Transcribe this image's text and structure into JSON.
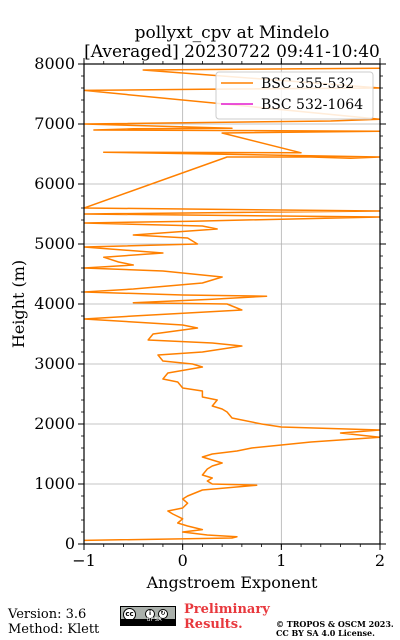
{
  "chart_data": {
    "type": "line",
    "title": [
      "pollyxt_cpv at Mindelo",
      "[Averaged] 20230722 09:41-10:40"
    ],
    "xlabel": "Angstroem Exponent",
    "ylabel": "Height (m)",
    "xlim": [
      -1,
      2
    ],
    "ylim": [
      0,
      8000
    ],
    "xticks": [
      -1,
      0,
      1,
      2
    ],
    "yticks": [
      0,
      1000,
      2000,
      3000,
      4000,
      5000,
      6000,
      7000,
      8000
    ],
    "grid": true,
    "legend_position": "top-right",
    "series": [
      {
        "name": "BSC 355-532",
        "color": "#ff8000",
        "points": [
          [
            -1.0,
            60
          ],
          [
            0.5,
            100
          ],
          [
            0.55,
            120
          ],
          [
            0.25,
            150
          ],
          [
            0.0,
            200
          ],
          [
            0.2,
            240
          ],
          [
            0.05,
            300
          ],
          [
            -0.05,
            350
          ],
          [
            0.0,
            420
          ],
          [
            -0.1,
            500
          ],
          [
            -0.15,
            550
          ],
          [
            0.0,
            600
          ],
          [
            0.05,
            680
          ],
          [
            0.0,
            750
          ],
          [
            0.05,
            800
          ],
          [
            0.2,
            900
          ],
          [
            0.75,
            980
          ],
          [
            0.3,
            1000
          ],
          [
            0.25,
            1050
          ],
          [
            0.3,
            1100
          ],
          [
            0.2,
            1150
          ],
          [
            0.25,
            1250
          ],
          [
            0.3,
            1300
          ],
          [
            0.4,
            1350
          ],
          [
            0.3,
            1400
          ],
          [
            0.2,
            1450
          ],
          [
            0.3,
            1500
          ],
          [
            0.55,
            1550
          ],
          [
            0.7,
            1600
          ],
          [
            1.0,
            1650
          ],
          [
            1.3,
            1700
          ],
          [
            2.0,
            1780
          ],
          [
            1.6,
            1850
          ],
          [
            2.0,
            1900
          ],
          [
            1.0,
            1950
          ],
          [
            0.8,
            2000
          ],
          [
            0.5,
            2100
          ],
          [
            0.45,
            2200
          ],
          [
            0.4,
            2250
          ],
          [
            0.3,
            2300
          ],
          [
            0.35,
            2400
          ],
          [
            0.2,
            2450
          ],
          [
            0.2,
            2550
          ],
          [
            0.0,
            2600
          ],
          [
            -0.05,
            2700
          ],
          [
            -0.2,
            2750
          ],
          [
            -0.15,
            2850
          ],
          [
            0.2,
            2950
          ],
          [
            0.1,
            3000
          ],
          [
            -0.2,
            3050
          ],
          [
            -0.25,
            3150
          ],
          [
            0.2,
            3200
          ],
          [
            0.6,
            3300
          ],
          [
            0.3,
            3350
          ],
          [
            -0.35,
            3400
          ],
          [
            -0.3,
            3500
          ],
          [
            0.15,
            3600
          ],
          [
            0.0,
            3650
          ],
          [
            -0.5,
            3700
          ],
          [
            -1.0,
            3750
          ],
          [
            -0.5,
            3800
          ],
          [
            0.6,
            3900
          ],
          [
            0.45,
            4000
          ],
          [
            -0.5,
            4020
          ],
          [
            0.3,
            4080
          ],
          [
            0.85,
            4130
          ],
          [
            0.0,
            4150
          ],
          [
            -1.0,
            4200
          ],
          [
            -0.5,
            4250
          ],
          [
            0.2,
            4350
          ],
          [
            0.4,
            4450
          ],
          [
            -0.2,
            4550
          ],
          [
            -1.0,
            4600
          ],
          [
            -0.5,
            4650
          ],
          [
            -0.65,
            4700
          ],
          [
            -0.8,
            4780
          ],
          [
            -0.2,
            4850
          ],
          [
            -1.0,
            4950
          ],
          [
            0.15,
            5000
          ],
          [
            0.05,
            5100
          ],
          [
            -0.5,
            5150
          ],
          [
            0.35,
            5250
          ],
          [
            0.2,
            5300
          ],
          [
            -1.0,
            5350
          ],
          [
            0.1,
            5380
          ],
          [
            2.0,
            5450
          ],
          [
            -1.0,
            5500
          ],
          [
            2.0,
            5550
          ],
          [
            -1.0,
            5600
          ],
          [
            0.45,
            6450
          ],
          [
            1.3,
            6450
          ],
          [
            1.7,
            6430
          ],
          [
            2.0,
            6450
          ],
          [
            1.0,
            6480
          ],
          [
            -0.8,
            6530
          ],
          [
            1.2,
            6520
          ],
          [
            0.4,
            6850
          ],
          [
            2.0,
            6880
          ],
          [
            -0.9,
            6900
          ],
          [
            -0.5,
            6920
          ],
          [
            0.5,
            6930
          ],
          [
            -1.0,
            7000
          ],
          [
            1.5,
            7050
          ],
          [
            2.0,
            7080
          ],
          [
            -1.0,
            7560
          ],
          [
            0.2,
            7580
          ],
          [
            2.0,
            7600
          ],
          [
            -0.4,
            7900
          ],
          [
            2.0,
            7930
          ]
        ]
      },
      {
        "name": "BSC 532-1064",
        "color": "#e31ad0",
        "points": []
      }
    ]
  },
  "footer": {
    "version": "Version: 3.6",
    "method": "Method: Klett",
    "preliminary_line1": "Preliminary",
    "preliminary_line2": "Results.",
    "copyright_line1": "© TROPOS & OSCM 2023.",
    "copyright_line2": "CC BY SA 4.0 License.",
    "cc_badge_text": "BY SA"
  }
}
